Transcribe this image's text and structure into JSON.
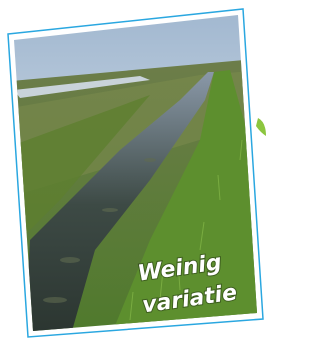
{
  "caption": {
    "lines": [
      "Weinig",
      "variatie"
    ]
  }
}
